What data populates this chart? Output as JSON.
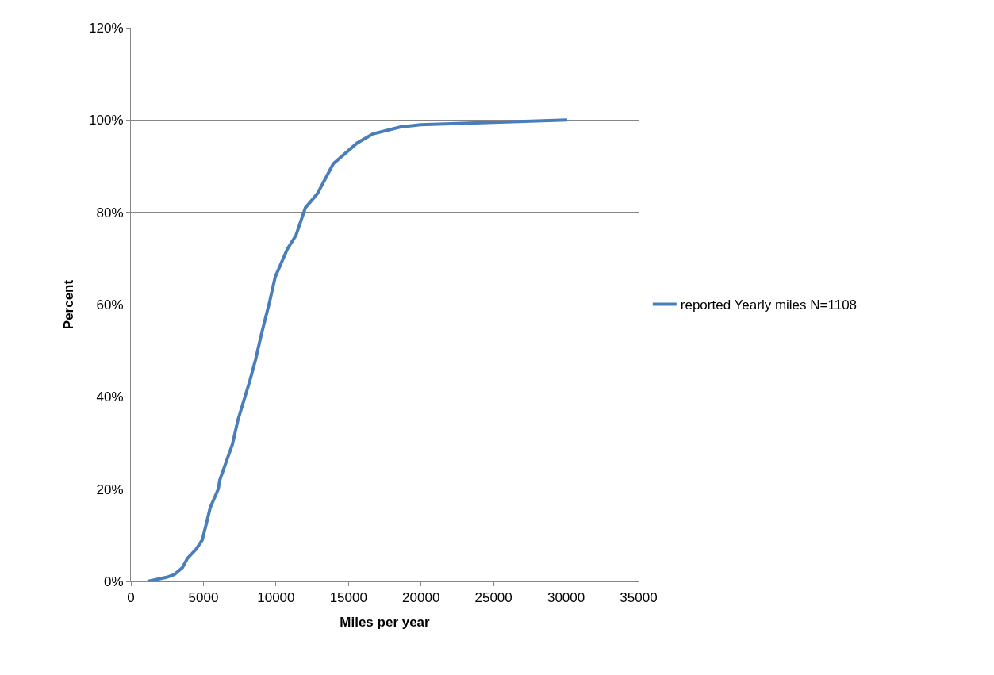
{
  "chart_data": {
    "type": "line",
    "xlabel": "Miles per year",
    "ylabel": "Percent",
    "xlim": [
      0,
      35000
    ],
    "xticks": [
      0,
      5000,
      10000,
      15000,
      20000,
      25000,
      30000,
      35000
    ],
    "ylim": [
      0,
      120
    ],
    "yticks": [
      {
        "value": 0,
        "label": "0%"
      },
      {
        "value": 20,
        "label": "20%"
      },
      {
        "value": 40,
        "label": "40%"
      },
      {
        "value": 60,
        "label": "60%"
      },
      {
        "value": 80,
        "label": "80%"
      },
      {
        "value": 100,
        "label": "100%"
      },
      {
        "value": 120,
        "label": "120%"
      }
    ],
    "grid": "y",
    "legend": "right",
    "marker": "none",
    "line_style": "solid",
    "series": [
      {
        "name": "reported Yearly miles N=1108",
        "color": "#4a7ebb",
        "x": [
          1150,
          2460,
          3000,
          3560,
          3900,
          4500,
          4920,
          5200,
          5470,
          6020,
          6130,
          7000,
          7380,
          8200,
          8590,
          9030,
          9570,
          9950,
          10780,
          11380,
          12030,
          12850,
          13950,
          15590,
          16680,
          18600,
          19960,
          30080
        ],
        "values": [
          0,
          0.9,
          1.5,
          3,
          5,
          7,
          9,
          12.5,
          16,
          20,
          22,
          29.7,
          35,
          43.5,
          48,
          54,
          60.7,
          66,
          72,
          75,
          81,
          84,
          90.5,
          95,
          97,
          98.5,
          99,
          100
        ]
      }
    ]
  }
}
